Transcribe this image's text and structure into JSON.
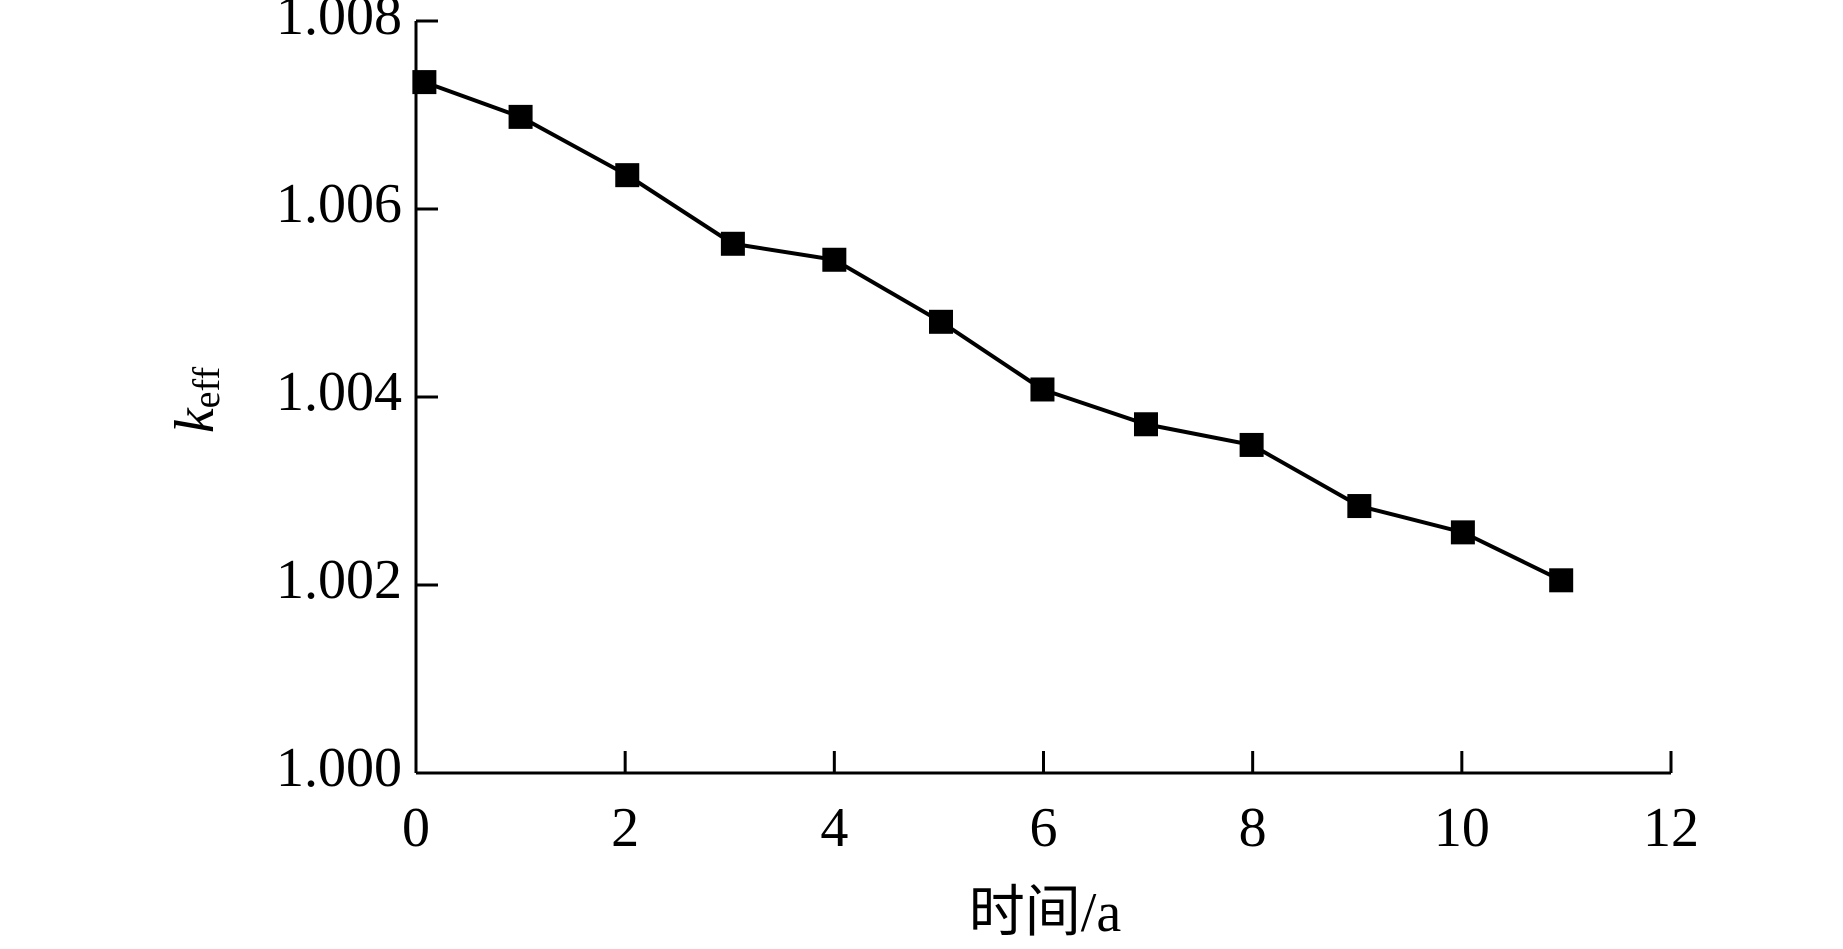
{
  "chart_data": {
    "type": "line",
    "x_label": "时间/a",
    "y_label": "k",
    "y_label_subscript": "eff",
    "x": [
      0.08,
      1,
      2.02,
      3.03,
      4,
      5.02,
      5.99,
      6.98,
      7.99,
      9.02,
      10.01,
      10.95
    ],
    "series": [
      {
        "name": "keff",
        "color": "#000000",
        "values": [
          1.00735,
          1.00698,
          1.00636,
          1.00563,
          1.00546,
          1.0048,
          1.00408,
          1.00371,
          1.00349,
          1.00284,
          1.00256,
          1.00205
        ]
      }
    ],
    "xlim": [
      0,
      12
    ],
    "xticks": [
      0,
      2,
      4,
      6,
      8,
      10,
      12
    ],
    "ylim": [
      1,
      1.008
    ],
    "yticks": [
      {
        "value": 1,
        "label": "1.000"
      },
      1.002,
      1.004,
      1.006,
      1.008
    ],
    "grid": false,
    "marker": "square"
  }
}
